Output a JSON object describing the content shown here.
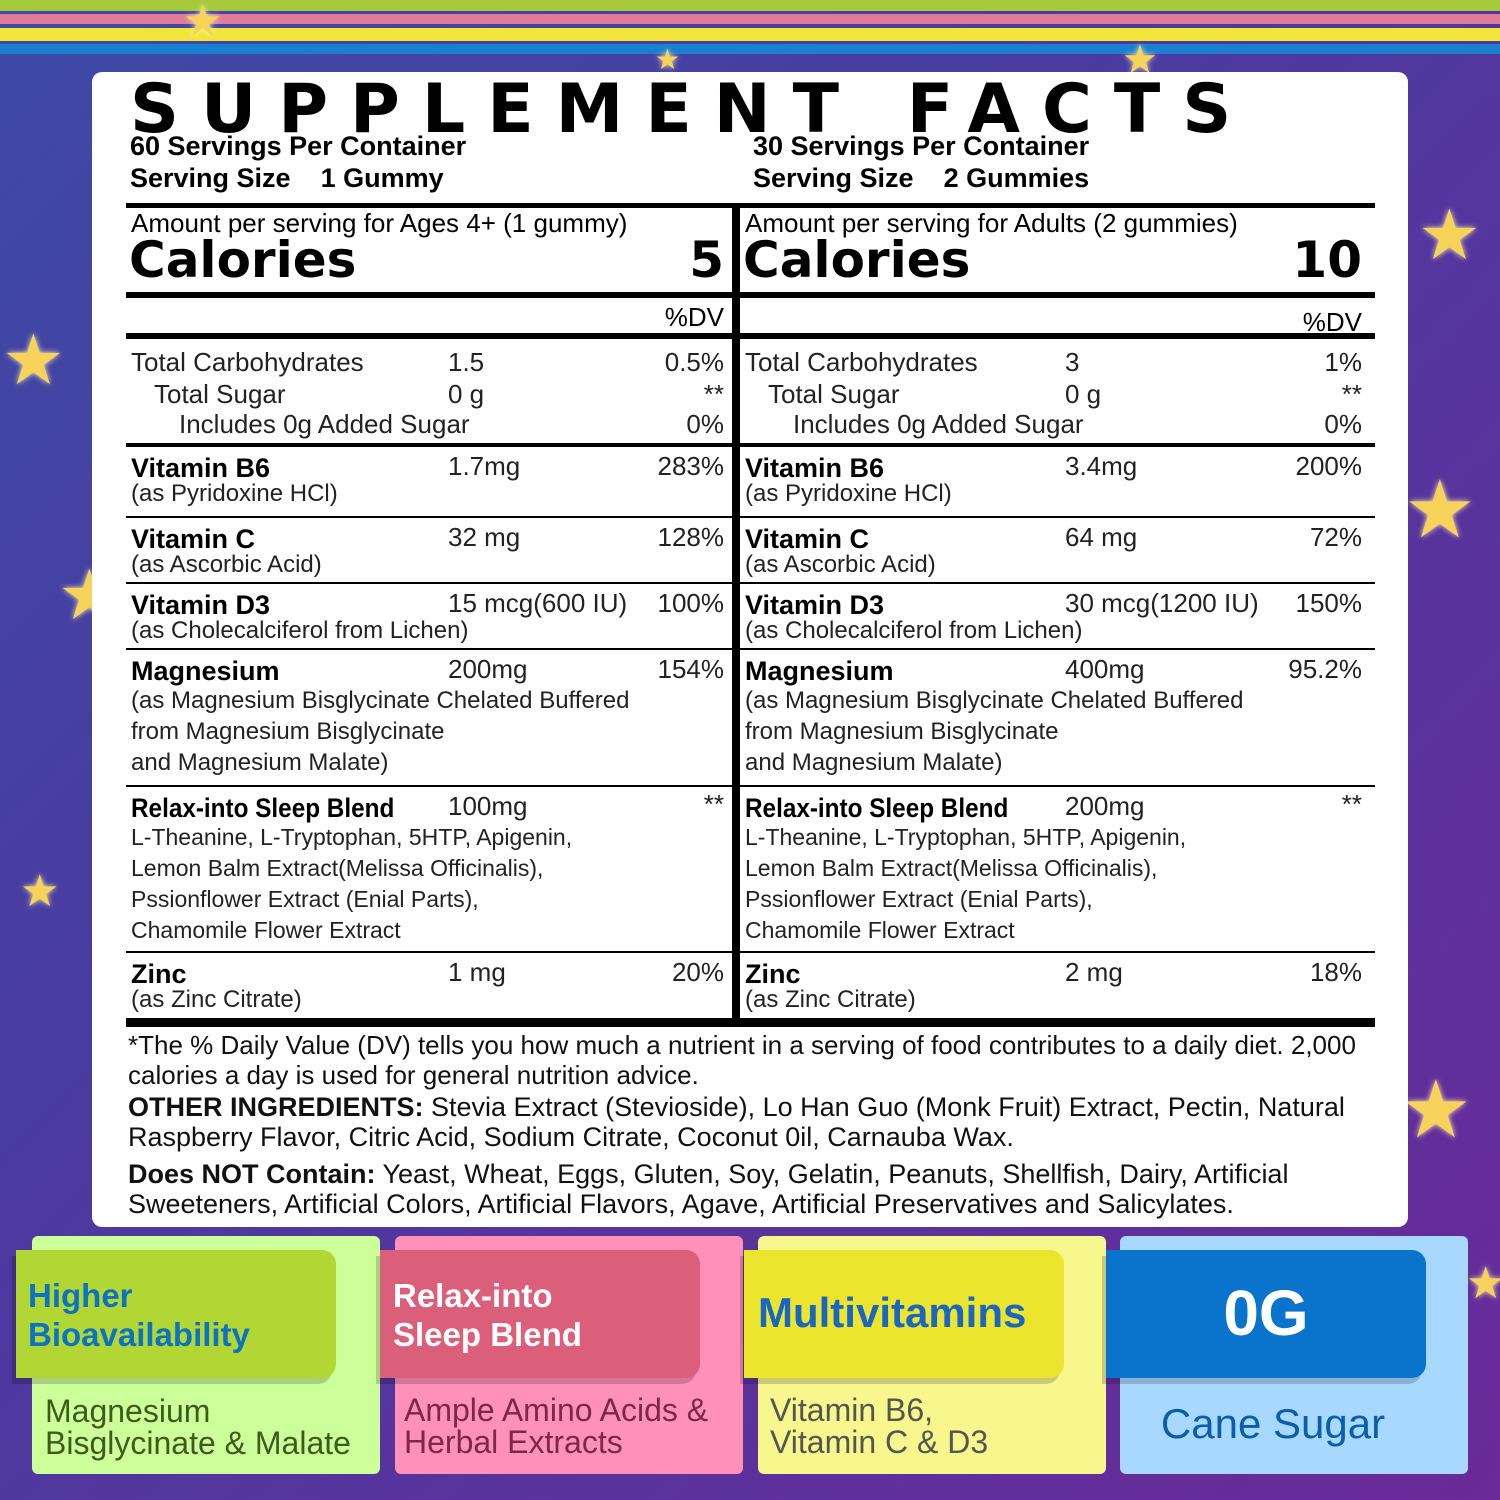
{
  "title": "SUPPLEMENT FACTS",
  "colors": {
    "green_tab": "#b2d633",
    "pink_tab": "#db5e7a",
    "yellow_tab": "#ece52e",
    "blue_tab": "#0a73cc"
  },
  "left": {
    "servings": "60 Servings Per Container",
    "serving_size": "Serving Size    1 Gummy",
    "amount_header": "Amount per serving for Ages 4+  (1 gummy)",
    "calories_label": "Calories",
    "calories": "5",
    "dv_header": "%DV",
    "carbs": {
      "name": "Total Carbohydrates",
      "amount": "1.5",
      "dv": "0.5%",
      "sugar": "Total Sugar",
      "sugar_amount": "0 g",
      "sugar_dv": "**",
      "added": "Includes 0g Added Sugar",
      "added_dv": "0%"
    },
    "nutrients": [
      {
        "name": "Vitamin B6",
        "amount": "1.7mg",
        "dv": "283%",
        "sub": [
          "(as Pyridoxine HCl)"
        ]
      },
      {
        "name": "Vitamin C",
        "amount": "32 mg",
        "dv": "128%",
        "sub": [
          "(as Ascorbic Acid)"
        ]
      },
      {
        "name": "Vitamin D3",
        "amount": "15 mcg(600 IU)",
        "dv": "100%",
        "sub": [
          "(as Cholecalciferol from Lichen)"
        ]
      },
      {
        "name": "Magnesium",
        "amount": "200mg",
        "dv": "154%",
        "sub": [
          "(as Magnesium Bisglycinate Chelated Buffered",
          "from Magnesium Bisglycinate",
          "and Magnesium Malate)"
        ]
      },
      {
        "name": "Relax-into Sleep Blend",
        "amount": "100mg",
        "dv": "**",
        "sub": [
          "L-Theanine, L-Tryptophan, 5HTP, Apigenin,",
          "Lemon Balm Extract(Melissa Officinalis),",
          "Pssionflower Extract (Enial Parts),",
          "Chamomile Flower Extract"
        ]
      },
      {
        "name": "Zinc",
        "amount": "1 mg",
        "dv": "20%",
        "sub": [
          "(as Zinc Citrate)"
        ]
      }
    ]
  },
  "right": {
    "servings": "30 Servings Per Container",
    "serving_size": "Serving Size    2 Gummies",
    "amount_header": "Amount per serving for Adults (2 gummies)",
    "calories_label": "Calories",
    "calories": "10",
    "dv_header": "%DV",
    "carbs": {
      "name": "Total Carbohydrates",
      "amount": "3",
      "dv": "1%",
      "sugar": "Total Sugar",
      "sugar_amount": "0 g",
      "sugar_dv": "**",
      "added": "Includes 0g Added Sugar",
      "added_dv": "0%"
    },
    "nutrients": [
      {
        "name": "Vitamin B6",
        "amount": "3.4mg",
        "dv": "200%",
        "sub": [
          "(as Pyridoxine HCl)"
        ]
      },
      {
        "name": "Vitamin C",
        "amount": "64 mg",
        "dv": "72%",
        "sub": [
          "(as Ascorbic Acid)"
        ]
      },
      {
        "name": "Vitamin D3",
        "amount": "30 mcg(1200 IU)",
        "dv": "150%",
        "sub": [
          "(as Cholecalciferol from Lichen)"
        ]
      },
      {
        "name": "Magnesium",
        "amount": "400mg",
        "dv": "95.2%",
        "sub": [
          "(as Magnesium Bisglycinate Chelated Buffered",
          "from Magnesium Bisglycinate",
          "and Magnesium Malate)"
        ]
      },
      {
        "name": "Relax-into Sleep Blend",
        "amount": "200mg",
        "dv": "**",
        "sub": [
          "L-Theanine, L-Tryptophan, 5HTP, Apigenin,",
          "Lemon Balm Extract(Melissa Officinalis),",
          "Pssionflower Extract (Enial Parts),",
          "Chamomile Flower Extract"
        ]
      },
      {
        "name": "Zinc",
        "amount": "2 mg",
        "dv": "18%",
        "sub": [
          "(as Zinc Citrate)"
        ]
      }
    ]
  },
  "footer": {
    "dv_note": "*The % Daily Value (DV) tells you how much a nutrient in a serving of food contributes to a daily diet. 2,000 calories a day is used for general nutrition advice.",
    "other_label": "OTHER INGREDIENTS:",
    "other": " Stevia Extract (Stevioside), Lo Han Guo (Monk Fruit) Extract, Pectin, Natural Raspberry Flavor, Citric Acid, Sodium Citrate, Coconut 0il, Carnauba Wax.",
    "not_label": "Does NOT Contain:",
    "not": " Yeast, Wheat, Eggs, Gluten, Soy, Gelatin, Peanuts, Shellfish, Dairy, Artificial Sweeteners, Artificial Colors, Artificial  Flavors, Agave, Artificial Preservatives and Salicylates."
  },
  "features": [
    {
      "title": "Higher\nBioavailability",
      "sub": "Magnesium\nBisglycinate & Malate"
    },
    {
      "title": "Relax-into\nSleep Blend",
      "sub": "Ample Amino Acids &\nHerbal Extracts"
    },
    {
      "title": "Multivitamins",
      "sub": "Vitamin B6,\nVitamin C & D3"
    },
    {
      "title": "0G",
      "sub": "Cane Sugar"
    }
  ]
}
